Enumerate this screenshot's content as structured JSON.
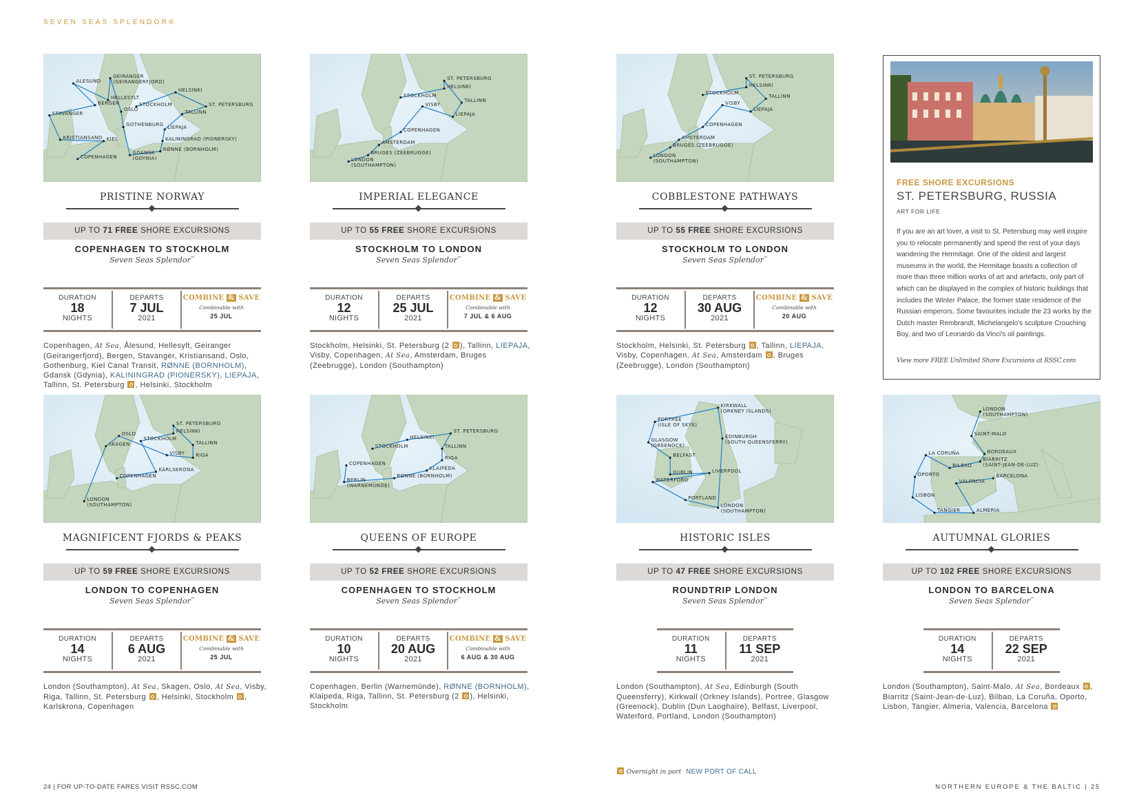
{
  "header": {
    "brand": "SEVEN SEAS SPLENDOR®"
  },
  "colors": {
    "gold": "#c9973f",
    "new_port_blue": "#3d6a8e",
    "bar_gray": "#dcd9d6",
    "rule": "#8d8178",
    "sea": "#cfe3ef",
    "land": "#c4d6bd",
    "route": "#1f7fc6"
  },
  "common": {
    "duration_label": "DURATION",
    "nights_label": "NIGHTS",
    "departs_label": "DEPARTS",
    "bar_prefix": "UP TO",
    "bar_free": "FREE",
    "bar_suffix": "SHORE EXCURSIONS",
    "combine_a": "COMBINE",
    "combine_amp": "&",
    "combine_b": "SAVE",
    "combinable_with": "Combinable with",
    "ship": "Seven Seas Splendor",
    "ship_mark": "™"
  },
  "voyages": [
    {
      "title": "PRISTINE NORWAY",
      "excursions": "71",
      "route": "COPENHAGEN TO STOCKHOLM",
      "nights": "18",
      "departs": "7 JUL",
      "year": "2021",
      "combine_dates": "25 JUL",
      "map_labels": [
        "ALESUND",
        "GEIRANGER\n(GEIRANGERFJORD)",
        "HELLESYLT",
        "BERGEN",
        "OSLO",
        "STAVANGER",
        "STOCKHOLM",
        "HELSINKI",
        "ST. PETERSBURG",
        "TALLINN",
        "GOTHENBURG",
        "LIEPAJA",
        "KRISTIANSAND",
        "KIEL",
        "KALININGRAD (PIONERSKY)",
        "RØNNE (BORNHOLM)",
        "COPENHAGEN",
        "GDANSK\n(GDYNIA)"
      ],
      "ports": [
        {
          "text": "Copenhagen, "
        },
        {
          "text": "At Sea",
          "type": "sea"
        },
        {
          "text": ", Ålesund, Hellesylt, Geiranger (Geirangerfjord), Bergen, Stavanger, Kristiansand, Oslo, Gothenburg, Kiel Canal Transit, "
        },
        {
          "text": "RØNNE (BORNHOLM)",
          "type": "new"
        },
        {
          "text": ", Gdansk (Gdynia), "
        },
        {
          "text": "KALININGRAD (PIONERSKY)",
          "type": "new"
        },
        {
          "text": ", "
        },
        {
          "text": "LIEPAJA",
          "type": "new"
        },
        {
          "text": ", Tallinn, St. Petersburg "
        },
        {
          "type": "overnight"
        },
        {
          "text": ", Helsinki, Stockholm"
        }
      ]
    },
    {
      "title": "IMPERIAL ELEGANCE",
      "excursions": "55",
      "route": "STOCKHOLM TO LONDON",
      "nights": "12",
      "departs": "25 JUL",
      "year": "2021",
      "combine_dates": "7 JUL & 6 AUG",
      "map_labels": [
        "ST. PETERSBURG",
        "HELSINKI",
        "STOCKHOLM",
        "TALLINN",
        "VISBY",
        "LIEPAJA",
        "COPENHAGEN",
        "AMSTERDAM",
        "BRUGES (ZEEBRUGGE)",
        "LONDON\n(SOUTHAMPTON)"
      ],
      "ports": [
        {
          "text": "Stockholm, Helsinki, St. Petersburg (2 "
        },
        {
          "type": "overnight"
        },
        {
          "text": "), Tallinn, "
        },
        {
          "text": "LIEPAJA",
          "type": "new"
        },
        {
          "text": ", Visby, Copenhagen, "
        },
        {
          "text": "At Sea",
          "type": "sea"
        },
        {
          "text": ", Amsterdam, Bruges (Zeebrugge), London (Southampton)"
        }
      ]
    },
    {
      "title": "COBBLESTONE PATHWAYS",
      "excursions": "55",
      "route": "STOCKHOLM TO LONDON",
      "nights": "12",
      "departs": "30 AUG",
      "year": "2021",
      "combine_dates": "20 AUG",
      "map_labels": [
        "ST. PETERSBURG",
        "HELSINKI",
        "STOCKHOLM",
        "TALLINN",
        "VISBY",
        "LIEPAJA",
        "COPENHAGEN",
        "AMSTERDAM",
        "BRUGES (ZEEBRUGGE)",
        "LONDON\n(SOUTHAMPTON)"
      ],
      "ports": [
        {
          "text": "Stockholm, Helsinki, St. Petersburg "
        },
        {
          "type": "overnight"
        },
        {
          "text": ", Tallinn, "
        },
        {
          "text": "LIEPAJA",
          "type": "new"
        },
        {
          "text": ", Visby, Copenhagen, "
        },
        {
          "text": "At Sea",
          "type": "sea"
        },
        {
          "text": ", Amsterdam "
        },
        {
          "type": "overnight"
        },
        {
          "text": ", Bruges (Zeebrugge), London (Southampton)"
        }
      ]
    },
    {
      "title": "MAGNIFICENT FJORDS & PEAKS",
      "excursions": "59",
      "route": "LONDON TO COPENHAGEN",
      "nights": "14",
      "departs": "6 AUG",
      "year": "2021",
      "combine_dates": "25 JUL",
      "map_labels": [
        "ST. PETERSBURG",
        "HELSINKI",
        "OSLO",
        "STOCKHOLM",
        "SKAGEN",
        "TALLINN",
        "VISBY",
        "RIGA",
        "KARLSKRONA",
        "COPENHAGEN",
        "LONDON\n(SOUTHAMPTON)"
      ],
      "ports": [
        {
          "text": "London (Southampton), "
        },
        {
          "text": "At Sea",
          "type": "sea"
        },
        {
          "text": ", Skagen, Oslo, "
        },
        {
          "text": "At Sea",
          "type": "sea"
        },
        {
          "text": ", Visby, Riga, Tallinn, St. Petersburg "
        },
        {
          "type": "overnight"
        },
        {
          "text": ", Helsinki, Stockholm "
        },
        {
          "type": "overnight"
        },
        {
          "text": ", Karlskrona, Copenhagen"
        }
      ]
    },
    {
      "title": "QUEENS OF EUROPE",
      "excursions": "52",
      "route": "COPENHAGEN TO STOCKHOLM",
      "nights": "10",
      "departs": "20 AUG",
      "year": "2021",
      "combine_dates": "6 AUG & 30 AUG",
      "map_labels": [
        "ST. PETERSBURG",
        "HELSINKI",
        "STOCKHOLM",
        "TALLINN",
        "RIGA",
        "COPENHAGEN",
        "KLAIPĖDA",
        "RØNNE (BORNHOLM)",
        "BERLIN\n(WARNEMÜNDE)"
      ],
      "ports": [
        {
          "text": "Copenhagen, Berlin (Warnemünde), "
        },
        {
          "text": "RØNNE (BORNHOLM)",
          "type": "new"
        },
        {
          "text": ", Klaipeda, Riga, Tallinn, St. Petersburg (2 "
        },
        {
          "type": "overnight"
        },
        {
          "text": "), Helsinki, Stockholm"
        }
      ]
    },
    {
      "title": "HISTORIC ISLES",
      "excursions": "47",
      "route": "ROUNDTRIP LONDON",
      "nights": "11",
      "departs": "11 SEP",
      "year": "2021",
      "map_labels": [
        "KIRKWALL\n(ORKNEY ISLANDS)",
        "PORTREE\n(ISLE OF SKYE)",
        "EDINBURGH\n(SOUTH QUEENSFERRY)",
        "GLASGOW\n(GREENOCK)",
        "BELFAST",
        "DUBLIN",
        "LIVERPOOL",
        "WATERFORD",
        "PORTLAND",
        "LONDON\n(SOUTHAMPTON)"
      ],
      "ports": [
        {
          "text": "London (Southampton), "
        },
        {
          "text": "At Sea",
          "type": "sea"
        },
        {
          "text": ", Edinburgh (South Queensferry), Kirkwall (Orkney Islands), Portree, Glasgow (Greenock), Dublin (Dun Laoghaire), Belfast, Liverpool, Waterford, Portland, London (Southampton)"
        }
      ]
    },
    {
      "title": "AUTUMNAL GLORIES",
      "excursions": "102",
      "route": "LONDON TO BARCELONA",
      "nights": "14",
      "departs": "22 SEP",
      "year": "2021",
      "map_labels": [
        "LONDON\n(SOUTHAMPTON)",
        "SAINT-MALO",
        "LA CORUÑA",
        "BORDEAUX",
        "BIARRITZ\n(SAINT-JEAN-DE-LUZ)",
        "BILBAO",
        "OPORTO",
        "BARCELONA",
        "VALENCIA",
        "LISBON",
        "TANGIER",
        "ALMERIA"
      ],
      "ports": [
        {
          "text": "London (Southampton), Saint-Malo, "
        },
        {
          "text": "At Sea",
          "type": "sea"
        },
        {
          "text": ", Bordeaux "
        },
        {
          "type": "overnight"
        },
        {
          "text": ", Biarritz (Saint-Jean-de-Luz), Bilbao, La Coruña, Oporto, Lisbon, Tangier, Almeria, Valencia, Barcelona "
        },
        {
          "type": "overnight"
        }
      ]
    }
  ],
  "feature": {
    "kicker": "FREE SHORE EXCURSIONS",
    "title": "ST. PETERSBURG, RUSSIA",
    "subtitle": "ART FOR LIFE",
    "body": "If you are an art lover, a visit to St. Petersburg may well inspire you to relocate permanently and spend the rest of your days wandering the Hermitage. One of the oldest and largest museums in the world, the Hermitage boasts a collection of more than three million works of art and artefacts, only part of which can be displayed in the complex of historic buildings that includes the Winter Palace, the former state residence of the Russian emperors. Some favourites include the 23 works by the Dutch master Rembrandt, Michelangelo's sculpture Crouching Boy, and two of Leonardo da Vinci's oil paintings.",
    "link": "View more FREE Unlimited Shore Excursions at RSSC.com"
  },
  "legend": {
    "overnight": "Overnight in port",
    "new_port": "NEW PORT OF CALL"
  },
  "footer": {
    "left": "24  |  FOR UP-TO-DATE FARES VISIT RSSC.COM",
    "right": "NORTHERN EUROPE & THE BALTIC  |  25"
  }
}
